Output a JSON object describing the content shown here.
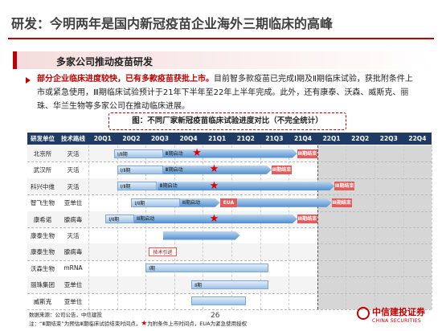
{
  "header": {
    "title": "研发：今明两年是国内新冠疫苗企业海外三期临床的高峰"
  },
  "section": {
    "title": "多家公司推动疫苗研发"
  },
  "body": {
    "highlight": "部分企业临床进度较快，已有多款疫苗获批上市。",
    "text": "目前智多款疫苗已完成Ⅰ期及Ⅱ期临床试验，获批附条件上市或紧急使用，Ⅲ期临床试验预计于21年下半年至22年上半年完成。此外，还有康泰、沃森、威斯克、丽珠、华兰生物等多家公司在推动临床进展。"
  },
  "figure": {
    "caption": "图：不同厂家新冠疫苗临床试验进度对比（不完全统计）",
    "columns": [
      "研发单位",
      "技术路线",
      "20Q1",
      "20Q2",
      "20Q3",
      "20Q4",
      "21Q1",
      "21Q2",
      "21Q3",
      "21Q4",
      "22Q1",
      "22Q2",
      "22Q3",
      "22Q4"
    ],
    "rows": [
      {
        "unit": "北京所",
        "tech": "灭活",
        "labels": [
          "Ⅰ/Ⅱ期",
          "Ⅲ期启动",
          "Ⅲ期结束"
        ]
      },
      {
        "unit": "武汉所",
        "tech": "灭活",
        "labels": [
          "Ⅰ/Ⅱ期",
          "Ⅲ期启动",
          "Ⅲ期结束"
        ]
      },
      {
        "unit": "科兴中维",
        "tech": "灭活",
        "labels": [
          "Ⅰ/Ⅱ期",
          "Ⅲ期启动",
          "Ⅲ期结束"
        ]
      },
      {
        "unit": "智飞生物",
        "tech": "亚单位",
        "labels": [
          "Ⅰ/Ⅱ期",
          "Ⅲ期启动",
          "EUA",
          "Ⅲ期结束"
        ]
      },
      {
        "unit": "康希诺",
        "tech": "腺病毒",
        "labels": [
          "Ⅰ/Ⅱ期",
          "Ⅲ期启动",
          "Ⅲ期结束"
        ]
      },
      {
        "unit": "康泰生物",
        "tech": "灭活",
        "labels": []
      },
      {
        "unit": "康泰生物",
        "tech": "腺病毒",
        "labels": [
          "技术引进"
        ]
      },
      {
        "unit": "沃森生物",
        "tech": "mRNA",
        "labels": [
          "Ⅰ期"
        ]
      },
      {
        "unit": "丽珠集团",
        "tech": "亚单位",
        "labels": [
          "Ⅱ期"
        ]
      },
      {
        "unit": "威斯克",
        "tech": "亚单位",
        "labels": []
      }
    ]
  },
  "footer": {
    "source": "数据来源：公司公告，中信建投",
    "note_prefix": "注：“Ⅲ期结束”为预估Ⅲ期临床试验结束时间点，",
    "note_suffix": "为附条件上市时间点，EUA为紧急使用授权",
    "page": "26",
    "logo_cn": "中信建投证券",
    "logo_en": "CHINA SECURITIES"
  }
}
